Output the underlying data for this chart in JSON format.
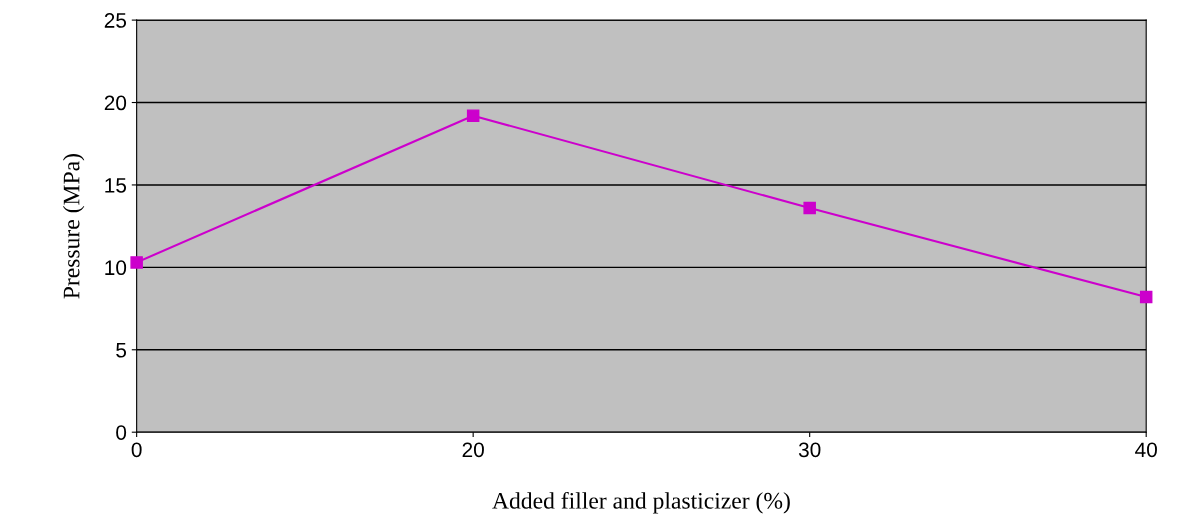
{
  "chart_data": {
    "type": "line",
    "xlabel": "Added filler and plasticizer (%)",
    "ylabel": "Pressure (MPa)",
    "categories": [
      "0",
      "20",
      "30",
      "40"
    ],
    "series": [
      {
        "color": "#cc00cc",
        "values": [
          10.3,
          19.2,
          13.6,
          8.2
        ]
      }
    ],
    "ylim": [
      0,
      25
    ],
    "yticks": [
      0,
      5,
      10,
      15,
      20,
      25
    ],
    "grid": "y",
    "marker": "square",
    "line_style": "solid",
    "legend": false
  }
}
